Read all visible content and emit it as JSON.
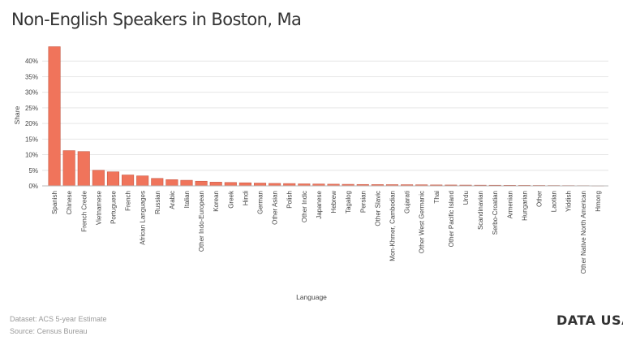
{
  "title": "Non-English Speakers in Boston, Ma",
  "footer": {
    "dataset": "Dataset: ACS 5-year Estimate",
    "source": "Source: Census Bureau"
  },
  "logo": {
    "text": "DATA USA",
    "mark": ":"
  },
  "colors": {
    "bar": "#f0745b",
    "bar_stroke": "#c85a46",
    "grid": "#e6e6e6",
    "text": "#444444"
  },
  "chart_data": {
    "type": "bar",
    "xlabel": "Language",
    "ylabel": "Share",
    "ylim": [
      0,
      45
    ],
    "yticks": [
      "0%",
      "5%",
      "10%",
      "15%",
      "20%",
      "25%",
      "30%",
      "35%",
      "40%"
    ],
    "grid": true,
    "categories": [
      "Spanish",
      "Chinese",
      "French Creole",
      "Vietnamese",
      "Portuguese",
      "French",
      "African Languages",
      "Russian",
      "Arabic",
      "Italian",
      "Other Indo-European",
      "Korean",
      "Greek",
      "Hindi",
      "German",
      "Other Asian",
      "Polish",
      "Other Indic",
      "Japanese",
      "Hebrew",
      "Tagalog",
      "Persian",
      "Other Slavic",
      "Mon-Khmer, Cambodian",
      "Gujarati",
      "Other West Germanic",
      "Thai",
      "Other Pacific Island",
      "Urdu",
      "Scandinavian",
      "Serbo-Croatian",
      "Armenian",
      "Hungarian",
      "Other",
      "Laotian",
      "Yiddish",
      "Other Native North American",
      "Hmong"
    ],
    "values": [
      44.6,
      11.3,
      11.0,
      5.0,
      4.5,
      3.5,
      3.2,
      2.4,
      2.0,
      1.8,
      1.5,
      1.2,
      1.1,
      1.0,
      0.9,
      0.8,
      0.75,
      0.65,
      0.6,
      0.55,
      0.5,
      0.45,
      0.42,
      0.4,
      0.38,
      0.35,
      0.3,
      0.28,
      0.25,
      0.22,
      0.2,
      0.18,
      0.16,
      0.14,
      0.12,
      0.1,
      0.08,
      0.06
    ]
  }
}
